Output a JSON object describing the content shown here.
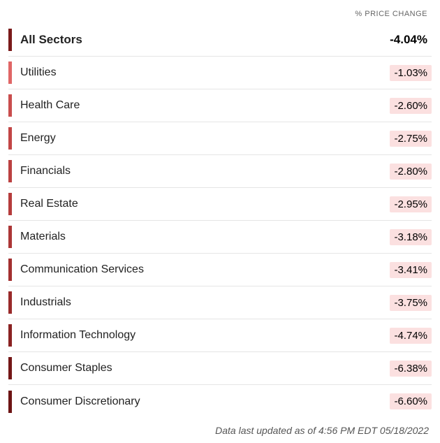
{
  "header_label": "% PRICE CHANGE",
  "value_bg_color": "#fbe0e0",
  "summary": {
    "label": "All Sectors",
    "value": "-4.04%",
    "tick_color": "#7a1a1a"
  },
  "rows": [
    {
      "label": "Utilities",
      "value": "-1.03%",
      "tick_color": "#e06666"
    },
    {
      "label": "Health Care",
      "value": "-2.60%",
      "tick_color": "#c94d4d"
    },
    {
      "label": "Energy",
      "value": "-2.75%",
      "tick_color": "#c24646"
    },
    {
      "label": "Financials",
      "value": "-2.80%",
      "tick_color": "#bb4141"
    },
    {
      "label": "Real Estate",
      "value": "-2.95%",
      "tick_color": "#b53c3c"
    },
    {
      "label": "Materials",
      "value": "-3.18%",
      "tick_color": "#ac3636"
    },
    {
      "label": "Communication Services",
      "value": "-3.41%",
      "tick_color": "#a33030"
    },
    {
      "label": "Industrials",
      "value": "-3.75%",
      "tick_color": "#992a2a"
    },
    {
      "label": "Information Technology",
      "value": "-4.74%",
      "tick_color": "#8a2222"
    },
    {
      "label": "Consumer Staples",
      "value": "-6.38%",
      "tick_color": "#741717"
    },
    {
      "label": "Consumer Discretionary",
      "value": "-6.60%",
      "tick_color": "#6d1414"
    }
  ],
  "footer": "Data last updated as of 4:56 PM EDT 05/18/2022"
}
